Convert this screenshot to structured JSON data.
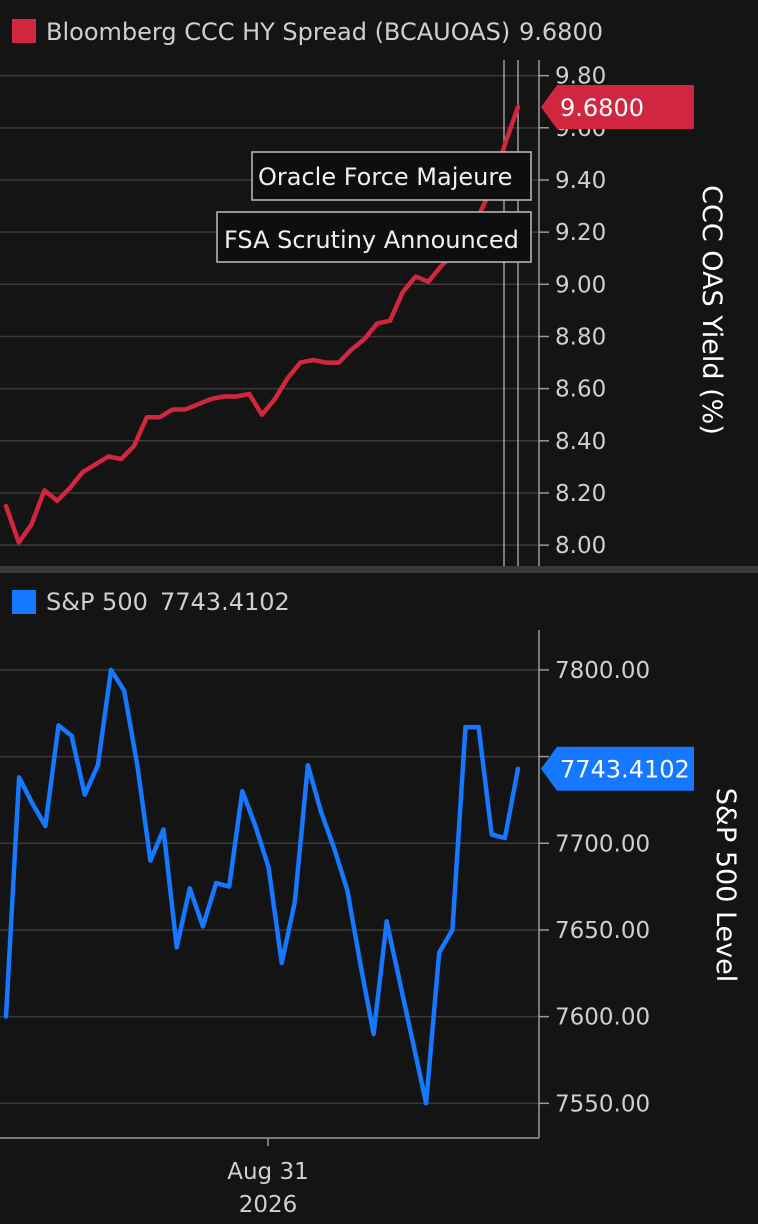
{
  "chart_data": [
    {
      "type": "line",
      "legend": "Bloomberg CCC HY Spread (BCAUOAS)",
      "last_value_label": "9.6800",
      "badge_label": "9.6800",
      "ylabel": "CCC OAS Yield (%)",
      "ylim": [
        7.92,
        9.86
      ],
      "yticks": [
        "8.00",
        "8.20",
        "8.40",
        "8.60",
        "8.80",
        "9.00",
        "9.20",
        "9.40",
        "9.60",
        "9.80"
      ],
      "color": "#d0263f",
      "series": [
        {
          "values": [
            8.15,
            8.01,
            8.08,
            8.21,
            8.17,
            8.22,
            8.28,
            8.31,
            8.34,
            8.33,
            8.38,
            8.49,
            8.49,
            8.52,
            8.52,
            8.54,
            8.56,
            8.57,
            8.57,
            8.58,
            8.5,
            8.56,
            8.64,
            8.7,
            8.71,
            8.7,
            8.7,
            8.75,
            8.79,
            8.85,
            8.86,
            8.97,
            9.03,
            9.01,
            9.07,
            9.12,
            9.2,
            9.27,
            9.38,
            9.54,
            9.68
          ]
        }
      ],
      "annotations": [
        "Oracle Force Majeure",
        "FSA Scrutiny Announced"
      ]
    },
    {
      "type": "line",
      "legend": "S&P 500",
      "last_value_label": "7743.4102",
      "badge_label": "7743.4102",
      "ylabel": "S&P 500 Level",
      "ylim": [
        7530,
        7823
      ],
      "yticks": [
        "7550.00",
        "7600.00",
        "7650.00",
        "7700.00",
        "7750.00",
        "7800.00"
      ],
      "color": "#1677ff",
      "series": [
        {
          "values": [
            7600,
            7738,
            7723,
            7710,
            7768,
            7762,
            7728,
            7745,
            7800,
            7788,
            7745,
            7690,
            7708,
            7640,
            7674,
            7652,
            7677,
            7675,
            7730,
            7710,
            7686,
            7631,
            7666,
            7745,
            7718,
            7697,
            7673,
            7630,
            7590,
            7655,
            7620,
            7585,
            7550,
            7637,
            7650,
            7767,
            7767,
            7705,
            7703,
            7743
          ]
        }
      ],
      "xtick": {
        "label_line1": "Aug 31",
        "label_line2": "2026"
      }
    }
  ]
}
